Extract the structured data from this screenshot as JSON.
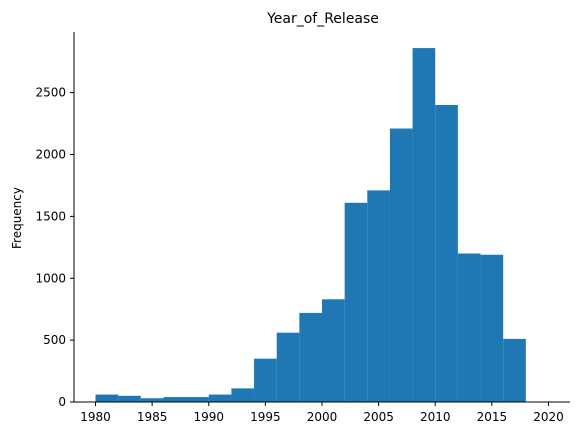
{
  "chart_data": {
    "type": "bar",
    "title": "Year_of_Release",
    "xlabel": "",
    "ylabel": "Frequency",
    "xlim": [
      1978.1,
      2021.9
    ],
    "ylim": [
      0,
      2990
    ],
    "xticks": [
      1980,
      1985,
      1990,
      1995,
      2000,
      2005,
      2010,
      2015,
      2020
    ],
    "yticks": [
      0,
      500,
      1000,
      1500,
      2000,
      2500
    ],
    "bin_edges": [
      1980,
      1982,
      1984,
      1986,
      1988,
      1990,
      1992,
      1994,
      1996,
      1998,
      2000,
      2002,
      2004,
      2006,
      2008,
      2010,
      2012,
      2014,
      2016,
      2018
    ],
    "values": [
      60,
      50,
      30,
      40,
      40,
      60,
      110,
      350,
      560,
      720,
      830,
      1610,
      1710,
      2210,
      2860,
      2400,
      1200,
      1190,
      510
    ],
    "bar_color": "#1f77b4",
    "grid": false
  }
}
